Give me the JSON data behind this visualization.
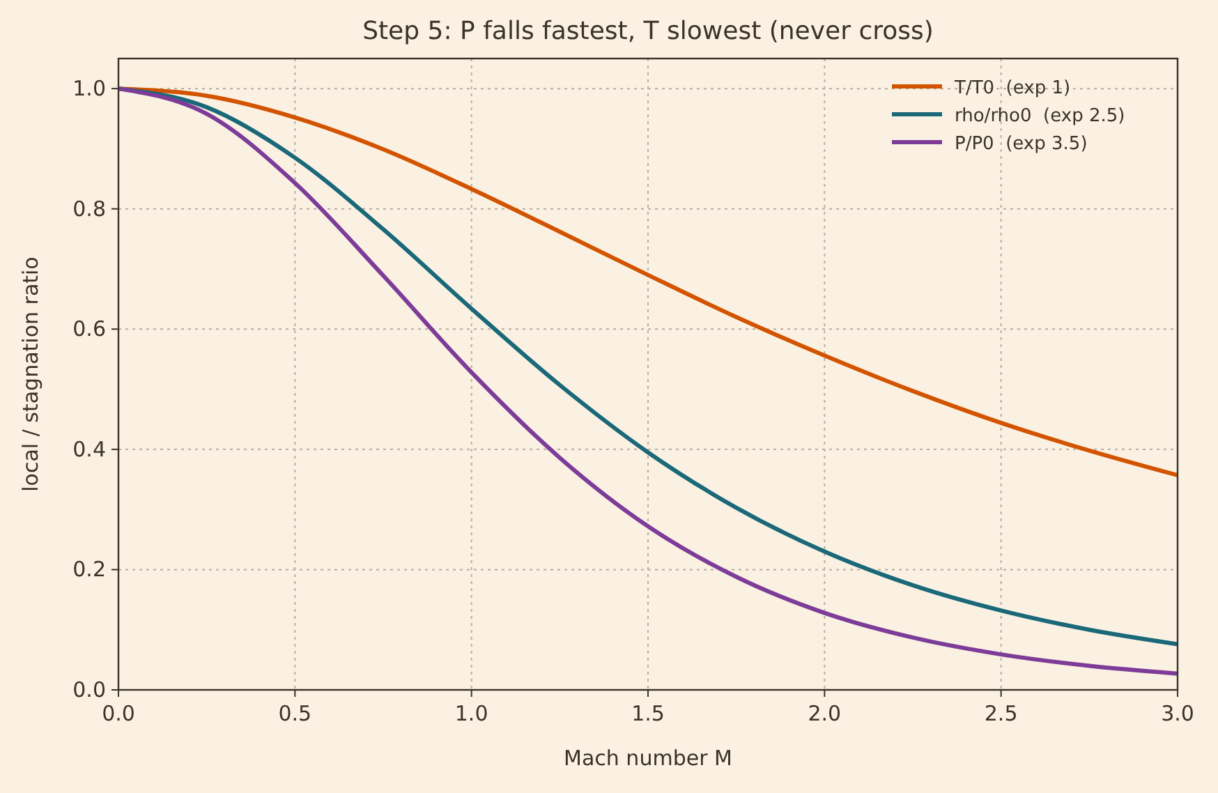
{
  "chart_data": {
    "type": "line",
    "title": "Step 5: P falls fastest, T slowest (never cross)",
    "xlabel": "Mach number M",
    "ylabel": "local / stagnation ratio",
    "x": [
      0,
      0.25,
      0.5,
      0.75,
      1,
      1.25,
      1.5,
      1.75,
      2,
      2.25,
      2.5,
      2.75,
      3
    ],
    "series": [
      {
        "name": "T/T0  (exp 1)",
        "color": "#d35400",
        "values": [
          1,
          0.988,
          0.952,
          0.899,
          0.833,
          0.762,
          0.69,
          0.62,
          0.556,
          0.497,
          0.444,
          0.398,
          0.357
        ]
      },
      {
        "name": "rho/rho0  (exp 2.5)",
        "color": "#1a6878",
        "values": [
          1,
          0.969,
          0.885,
          0.766,
          0.634,
          0.507,
          0.395,
          0.303,
          0.23,
          0.174,
          0.132,
          0.1,
          0.076
        ]
      },
      {
        "name": "P/P0  (exp 3.5)",
        "color": "#7d3c98",
        "values": [
          1,
          0.958,
          0.843,
          0.689,
          0.528,
          0.386,
          0.272,
          0.188,
          0.128,
          0.087,
          0.059,
          0.04,
          0.027
        ]
      }
    ],
    "xlim": [
      0,
      3
    ],
    "ylim": [
      0,
      1.05
    ],
    "xticks": [
      {
        "value": 0,
        "label": "0.0"
      },
      0.5,
      {
        "value": 1,
        "label": "1.0"
      },
      1.5,
      {
        "value": 2,
        "label": "2.0"
      },
      2.5,
      {
        "value": 3,
        "label": "3.0"
      }
    ],
    "yticks": [
      {
        "value": 0,
        "label": "0.0"
      },
      0.2,
      0.4,
      0.6,
      0.8,
      {
        "value": 1,
        "label": "1.0"
      }
    ],
    "grid": true,
    "legend": "top right",
    "marker": "none",
    "line_style": "solid"
  }
}
